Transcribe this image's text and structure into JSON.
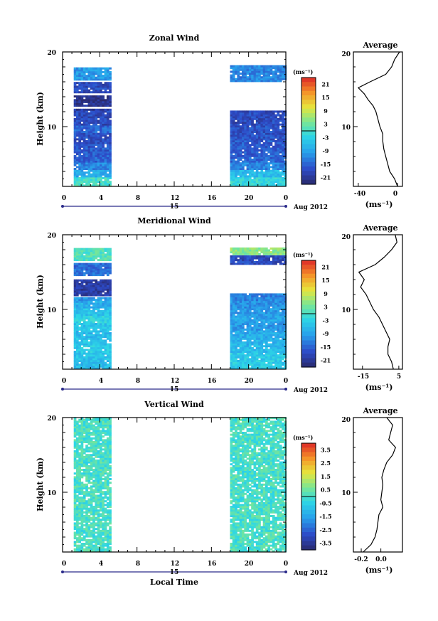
{
  "figure": {
    "x_axis_label": "Local Time",
    "date_label": "Aug 2012",
    "day_label": "15"
  },
  "chart_data": [
    {
      "type": "heatmap",
      "title": "Zonal Wind",
      "ylabel": "Height (km)",
      "xlabel": "Local Time",
      "x_ticks": [
        "0",
        "4",
        "8",
        "12",
        "16",
        "20",
        "0"
      ],
      "xlim": [
        0,
        24
      ],
      "y_ticks": [
        "20",
        "10"
      ],
      "ylim": [
        2,
        20
      ],
      "colorbar": {
        "unit": "(ms⁻¹)",
        "ticks": [
          "21",
          "15",
          "9",
          "3",
          "-3",
          "-9",
          "-15",
          "-21"
        ],
        "range": [
          -24,
          24
        ]
      },
      "data_blocks": [
        {
          "x": [
            1.2,
            5.0
          ],
          "y": [
            2.0,
            12.2
          ],
          "values_by_height": [
            [
              2,
              0
            ],
            [
              3,
              -8
            ],
            [
              4,
              -12
            ],
            [
              5,
              -15
            ],
            [
              6,
              -16
            ],
            [
              7,
              -17
            ],
            [
              8,
              -17
            ],
            [
              9,
              -15
            ],
            [
              10,
              -18
            ],
            [
              11,
              -18
            ],
            [
              12,
              -20
            ]
          ]
        },
        {
          "x": [
            1.2,
            5.0
          ],
          "y": [
            12.7,
            14.0
          ],
          "value": -22
        },
        {
          "x": [
            1.2,
            5.0
          ],
          "y": [
            14.5,
            15.8
          ],
          "value": -18
        },
        {
          "x": [
            1.2,
            5.0
          ],
          "y": [
            16.2,
            17.8
          ],
          "value": -10
        },
        {
          "x": [
            18.0,
            24.0
          ],
          "y": [
            2.0,
            12.0
          ],
          "values_by_height": [
            [
              2,
              -2
            ],
            [
              3,
              -6
            ],
            [
              4,
              -12
            ],
            [
              5,
              -15
            ],
            [
              6,
              -16
            ],
            [
              7,
              -16
            ],
            [
              8,
              -17
            ],
            [
              9,
              -17
            ],
            [
              10,
              -18
            ],
            [
              11,
              -18
            ],
            [
              12,
              -20
            ]
          ]
        },
        {
          "x": [
            18.0,
            24.0
          ],
          "y": [
            16.0,
            18.0
          ],
          "value": -12
        }
      ],
      "average_profile": {
        "title": "Average",
        "xlabel": "(ms⁻¹)",
        "x_ticks": [
          "-40",
          "0"
        ],
        "xlim": [
          -45,
          5
        ],
        "y_ticks": [
          "20",
          "10"
        ],
        "height_km": [
          2,
          3,
          4,
          5,
          6,
          7,
          8,
          9,
          10,
          11,
          12,
          12.8,
          13.6,
          14.4,
          15.2,
          16,
          17,
          18,
          19,
          20
        ],
        "wind_ms": [
          0,
          -3,
          -8,
          -10,
          -12,
          -14,
          -15,
          -15,
          -18,
          -20,
          -22,
          -25,
          -30,
          -34,
          -40,
          -28,
          -12,
          -6,
          -3,
          2
        ]
      }
    },
    {
      "type": "heatmap",
      "title": "Meridional Wind",
      "ylabel": "Height (km)",
      "xlabel": "Local Time",
      "x_ticks": [
        "0",
        "4",
        "8",
        "12",
        "16",
        "20",
        "0"
      ],
      "xlim": [
        0,
        24
      ],
      "y_ticks": [
        "20",
        "10"
      ],
      "ylim": [
        2,
        20
      ],
      "colorbar": {
        "unit": "(ms⁻¹)",
        "ticks": [
          "21",
          "15",
          "9",
          "3",
          "-3",
          "-9",
          "-15",
          "-21"
        ],
        "range": [
          -24,
          24
        ]
      },
      "data_blocks": [
        {
          "x": [
            1.2,
            5.0
          ],
          "y": [
            2.0,
            11.5
          ],
          "values_by_height": [
            [
              2,
              -6
            ],
            [
              3,
              -5
            ],
            [
              4,
              -4
            ],
            [
              5,
              -5
            ],
            [
              6,
              -6
            ],
            [
              7,
              -5
            ],
            [
              8,
              -3
            ],
            [
              9,
              -5
            ],
            [
              10,
              -8
            ],
            [
              11,
              -10
            ]
          ]
        },
        {
          "x": [
            1.2,
            5.0
          ],
          "y": [
            11.8,
            14.0
          ],
          "value": -20
        },
        {
          "x": [
            1.2,
            5.0
          ],
          "y": [
            14.5,
            16.0
          ],
          "value": -14
        },
        {
          "x": [
            1.2,
            5.0
          ],
          "y": [
            16.5,
            18.2
          ],
          "value": 1
        },
        {
          "x": [
            18.0,
            24.0
          ],
          "y": [
            2.0,
            12.0
          ],
          "values_by_height": [
            [
              2,
              -4
            ],
            [
              3,
              -4
            ],
            [
              4,
              -6
            ],
            [
              5,
              -7
            ],
            [
              6,
              -8
            ],
            [
              7,
              -10
            ],
            [
              8,
              -9
            ],
            [
              9,
              -10
            ],
            [
              10,
              -11
            ],
            [
              11,
              -12
            ],
            [
              12,
              -14
            ]
          ]
        },
        {
          "x": [
            18.0,
            24.0
          ],
          "y": [
            16.0,
            17.2
          ],
          "value": -18
        },
        {
          "x": [
            18.0,
            24.0
          ],
          "y": [
            17.3,
            18.2
          ],
          "value": 5
        }
      ],
      "average_profile": {
        "title": "Average",
        "xlabel": "(ms⁻¹)",
        "x_ticks": [
          "-15",
          "5"
        ],
        "xlim": [
          -20,
          7
        ],
        "y_ticks": [
          "20",
          "10"
        ],
        "height_km": [
          2,
          3,
          4,
          5,
          6,
          7,
          8,
          9,
          10,
          11,
          12,
          13,
          14,
          15,
          16,
          17,
          18,
          19,
          20
        ],
        "wind_ms": [
          2,
          1,
          -1,
          -1,
          0,
          -2,
          -4,
          -6,
          -9,
          -11,
          -13,
          -16,
          -14,
          -17,
          -8,
          -3,
          1,
          4,
          3
        ]
      }
    },
    {
      "type": "heatmap",
      "title": "Vertical Wind",
      "ylabel": "Height (km)",
      "xlabel": "Local Time",
      "x_ticks": [
        "0",
        "4",
        "8",
        "12",
        "16",
        "20",
        "0"
      ],
      "xlim": [
        0,
        24
      ],
      "y_ticks": [
        "20",
        "10"
      ],
      "ylim": [
        2,
        20
      ],
      "colorbar": {
        "unit": "(ms⁻¹)",
        "ticks": [
          "3.5",
          "2.5",
          "1.5",
          "0.5",
          "-0.5",
          "-1.5",
          "-2.5",
          "-3.5"
        ],
        "range": [
          -4,
          4
        ]
      },
      "data_blocks": [
        {
          "x": [
            1.2,
            5.0
          ],
          "y": [
            2.0,
            20.0
          ],
          "value": 0
        },
        {
          "x": [
            18.0,
            24.0
          ],
          "y": [
            2.0,
            20.0
          ],
          "value": 0
        }
      ],
      "average_profile": {
        "title": "Average",
        "xlabel": "(ms⁻¹)",
        "x_ticks": [
          "-0.2",
          "0.0"
        ],
        "xlim": [
          -0.28,
          0.22
        ],
        "y_ticks": [
          "20",
          "10"
        ],
        "height_km": [
          2,
          3,
          4,
          5,
          6,
          7,
          8,
          9,
          10,
          11,
          12,
          13,
          14,
          15,
          16,
          17,
          18,
          19,
          20
        ],
        "wind_ms": [
          -0.18,
          -0.1,
          -0.06,
          -0.04,
          -0.03,
          -0.02,
          0.02,
          0.0,
          0.01,
          0.02,
          0.01,
          0.03,
          0.06,
          0.12,
          0.15,
          0.08,
          0.1,
          0.12,
          0.06
        ]
      }
    }
  ]
}
